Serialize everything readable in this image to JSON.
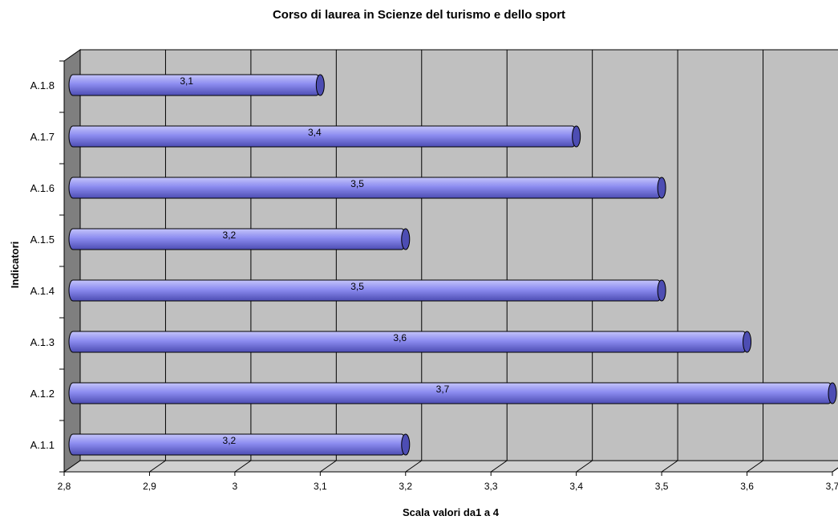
{
  "chart_data": {
    "type": "bar",
    "orientation": "horizontal",
    "title": "Corso di laurea in Scienze del turismo e dello sport",
    "xlabel": "Scala valori da1 a 4",
    "ylabel": "Indicatori",
    "xlim": [
      2.8,
      3.7
    ],
    "x_ticks": [
      2.8,
      2.9,
      3.0,
      3.1,
      3.2,
      3.3,
      3.4,
      3.5,
      3.6,
      3.7
    ],
    "x_tick_labels": [
      "2,8",
      "2,9",
      "3",
      "3,1",
      "3,2",
      "3,3",
      "3,4",
      "3,5",
      "3,6",
      "3,7"
    ],
    "categories": [
      "A.1.1",
      "A.1.2",
      "A.1.3",
      "A.1.4",
      "A.1.5",
      "A.1.6",
      "A.1.7",
      "A.1.8"
    ],
    "values": [
      3.2,
      3.7,
      3.6,
      3.5,
      3.2,
      3.5,
      3.4,
      3.1
    ],
    "value_labels": [
      "3,2",
      "3,7",
      "3,6",
      "3,5",
      "3,2",
      "3,5",
      "3,4",
      "3,1"
    ],
    "grid": true,
    "legend": "none",
    "colors": {
      "bar": "#8c8cf0",
      "bar_dark": "#4d4db3",
      "bar_light": "#c5c5fa",
      "plot_bg": "#c0c0c0",
      "wall": "#7f7f7f",
      "floor": "#d0d0d0"
    }
  }
}
